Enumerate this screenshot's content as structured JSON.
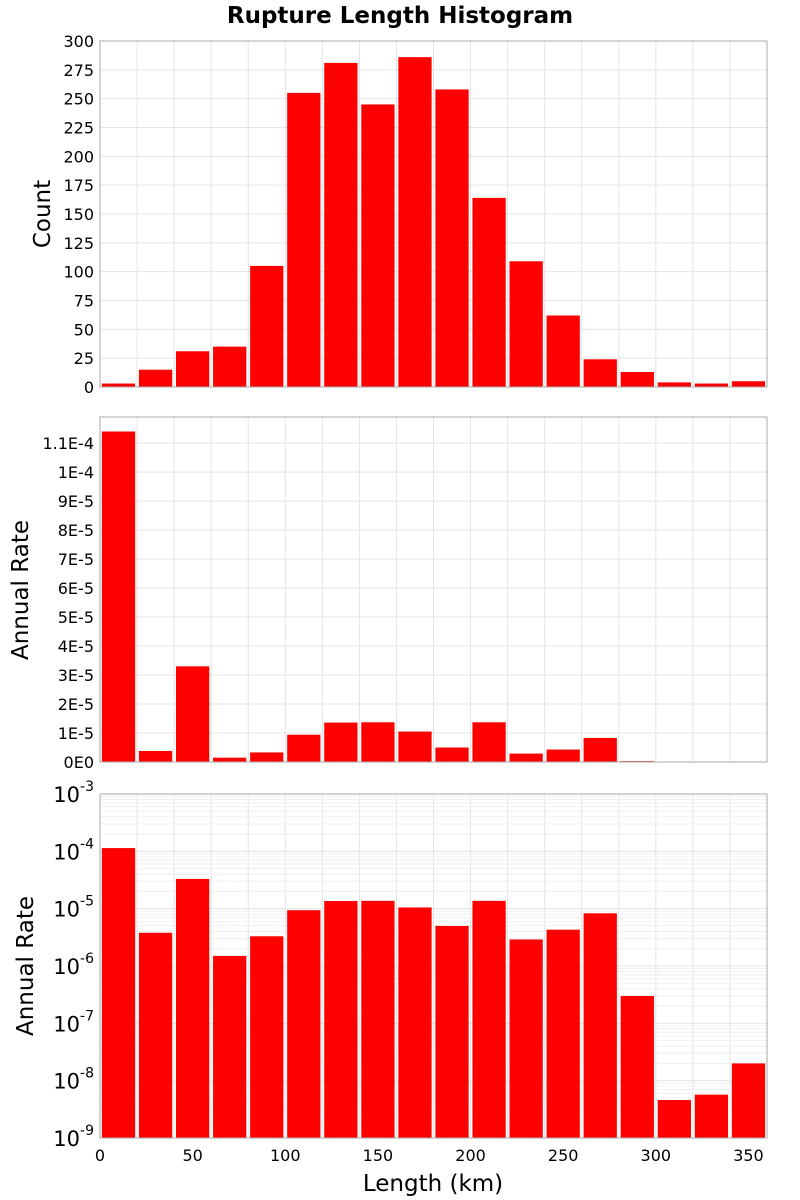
{
  "colors": {
    "bar": "#ff0000",
    "grid": "#e4e4e4",
    "frame": "#aaaaaa"
  },
  "chart_data": [
    {
      "type": "bar",
      "title": "Rupture Length Histogram",
      "ylabel": "Count",
      "xlabel": "",
      "yscale": "linear",
      "ylim": [
        0,
        300
      ],
      "yticks": [
        0,
        25,
        50,
        75,
        100,
        125,
        150,
        175,
        200,
        225,
        250,
        275,
        300
      ],
      "ytick_labels": [
        "0",
        "25",
        "50",
        "75",
        "100",
        "125",
        "150",
        "175",
        "200",
        "225",
        "250",
        "275",
        "300"
      ],
      "xlim": [
        0,
        360
      ],
      "bin_width": 20,
      "x": [
        10,
        30,
        50,
        70,
        90,
        110,
        130,
        150,
        170,
        190,
        210,
        230,
        250,
        270,
        290,
        310,
        330,
        350
      ],
      "values": [
        3,
        15,
        31,
        35,
        105,
        255,
        281,
        245,
        286,
        258,
        164,
        109,
        62,
        24,
        13,
        4,
        3,
        5
      ],
      "grid": true
    },
    {
      "type": "bar",
      "title": "",
      "ylabel": "Annual Rate",
      "xlabel": "",
      "yscale": "linear",
      "ylim": [
        0,
        0.000119
      ],
      "yticks": [
        0,
        1e-05,
        2e-05,
        3e-05,
        4e-05,
        5e-05,
        6e-05,
        7e-05,
        8e-05,
        9e-05,
        0.0001,
        0.00011
      ],
      "ytick_labels": [
        "0E0",
        "1E-5",
        "2E-5",
        "3E-5",
        "4E-5",
        "5E-5",
        "6E-5",
        "7E-5",
        "8E-5",
        "9E-5",
        "1E-4",
        "1.1E-4"
      ],
      "xlim": [
        0,
        360
      ],
      "bin_width": 20,
      "x": [
        10,
        30,
        50,
        70,
        90,
        110,
        130,
        150,
        170,
        190,
        210,
        230,
        250,
        270,
        290,
        310,
        330,
        350
      ],
      "values": [
        0.000114,
        3.8e-06,
        3.3e-05,
        1.5e-06,
        3.3e-06,
        9.4e-06,
        1.36e-05,
        1.37e-05,
        1.05e-05,
        5e-06,
        1.37e-05,
        2.9e-06,
        4.3e-06,
        8.3e-06,
        3e-07,
        4.6e-09,
        5.7e-09,
        2e-08
      ],
      "grid": true
    },
    {
      "type": "bar",
      "title": "",
      "ylabel": "Annual Rate",
      "xlabel": "Length (km)",
      "yscale": "log",
      "ylim": [
        1e-09,
        0.001
      ],
      "ytick_exponents": [
        "-9",
        "-8",
        "-7",
        "-6",
        "-5",
        "-4",
        "-3"
      ],
      "ytick_base": "10",
      "xlim": [
        0,
        360
      ],
      "xticks": [
        0,
        50,
        100,
        150,
        200,
        250,
        300,
        350
      ],
      "xtick_labels": [
        "0",
        "50",
        "100",
        "150",
        "200",
        "250",
        "300",
        "350"
      ],
      "bin_width": 20,
      "x": [
        10,
        30,
        50,
        70,
        90,
        110,
        130,
        150,
        170,
        190,
        210,
        230,
        250,
        270,
        290,
        310,
        330,
        350
      ],
      "values": [
        0.000114,
        3.8e-06,
        3.3e-05,
        1.5e-06,
        3.3e-06,
        9.4e-06,
        1.36e-05,
        1.37e-05,
        1.05e-05,
        5e-06,
        1.37e-05,
        2.9e-06,
        4.3e-06,
        8.3e-06,
        3e-07,
        4.6e-09,
        5.7e-09,
        2e-08
      ],
      "grid": true
    }
  ]
}
